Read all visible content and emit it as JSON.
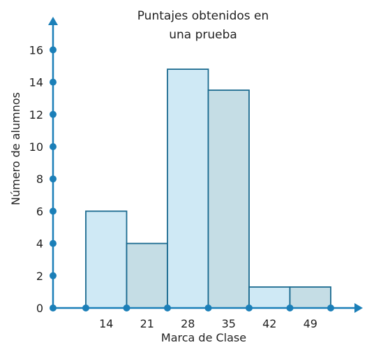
{
  "chart_data": {
    "type": "bar",
    "title": "Puntajes obtenidos en una prueba",
    "title_lines": [
      "Puntajes obtenidos en",
      "una prueba"
    ],
    "xlabel": "Marca de Clase",
    "ylabel": "Número de alumnos",
    "categories": [
      "14",
      "21",
      "28",
      "35",
      "42",
      "49"
    ],
    "values": [
      6,
      4,
      14.8,
      13.5,
      1.3,
      1.3
    ],
    "class_boundaries": [
      10.5,
      17.5,
      24.5,
      31.5,
      38.5,
      45.5,
      52.5
    ],
    "y_ticks": [
      "0",
      "2",
      "4",
      "6",
      "8",
      "10",
      "12",
      "14",
      "16"
    ],
    "ylim": [
      0,
      17.5
    ],
    "grid": false,
    "legend": "none",
    "colors": {
      "axis": "#1b7fb8",
      "bar_stroke": "#1a6a8f",
      "bar_fill_light": "#cfe9f5",
      "bar_fill_dark": "#c5dde5",
      "text": "#222222"
    }
  }
}
